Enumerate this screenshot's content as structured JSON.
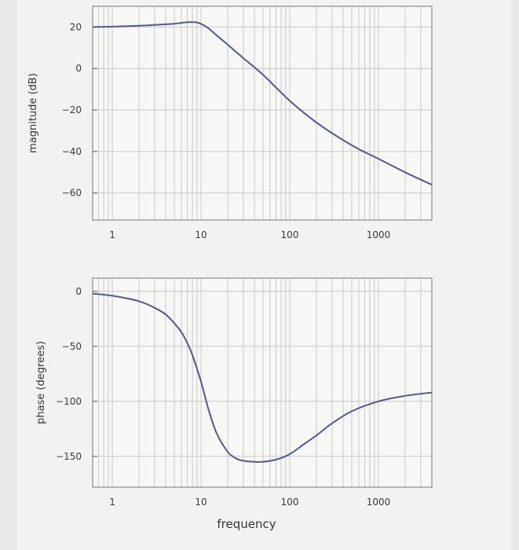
{
  "chart_data": [
    {
      "type": "line",
      "id": "magnitude",
      "ylabel": "magnitude (dB)",
      "xlabel": "",
      "xscale": "log",
      "xlim": [
        0.6,
        4000
      ],
      "ylim": [
        -73,
        30
      ],
      "grid": true,
      "yticks": [
        20,
        0,
        -20,
        -40,
        -60
      ],
      "xticks": [
        1,
        10,
        100,
        1000
      ],
      "series": [
        {
          "color": "#54588e",
          "x": [
            0.6,
            1,
            2,
            3,
            5,
            6,
            7,
            8,
            9,
            10,
            12,
            15,
            20,
            30,
            50,
            100,
            200,
            500,
            1000,
            2000,
            4000
          ],
          "y": [
            20,
            20.2,
            20.6,
            21,
            21.6,
            22,
            22.3,
            22.4,
            22.2,
            21.5,
            19.5,
            16,
            11.5,
            5,
            -3,
            -15.5,
            -26,
            -37,
            -43.5,
            -50,
            -56
          ]
        }
      ]
    },
    {
      "type": "line",
      "id": "phase",
      "ylabel": "phase (degrees)",
      "xlabel": "frequency",
      "xscale": "log",
      "xlim": [
        0.6,
        4000
      ],
      "ylim": [
        -178,
        12
      ],
      "grid": true,
      "yticks": [
        0,
        -50,
        -100,
        -150
      ],
      "xticks": [
        1,
        10,
        100,
        1000
      ],
      "series": [
        {
          "color": "#54588e",
          "x": [
            0.6,
            1,
            2,
            3,
            4,
            5,
            6,
            7,
            8,
            10,
            12,
            15,
            20,
            25,
            30,
            40,
            50,
            70,
            100,
            150,
            200,
            300,
            500,
            1000,
            2000,
            4000
          ],
          "y": [
            -2,
            -4,
            -9,
            -15,
            -21,
            -29,
            -37,
            -47,
            -58,
            -82,
            -106,
            -129,
            -146,
            -152,
            -154,
            -155,
            -155,
            -153,
            -148,
            -138,
            -131,
            -120,
            -109,
            -100,
            -95,
            -92
          ]
        }
      ]
    }
  ]
}
